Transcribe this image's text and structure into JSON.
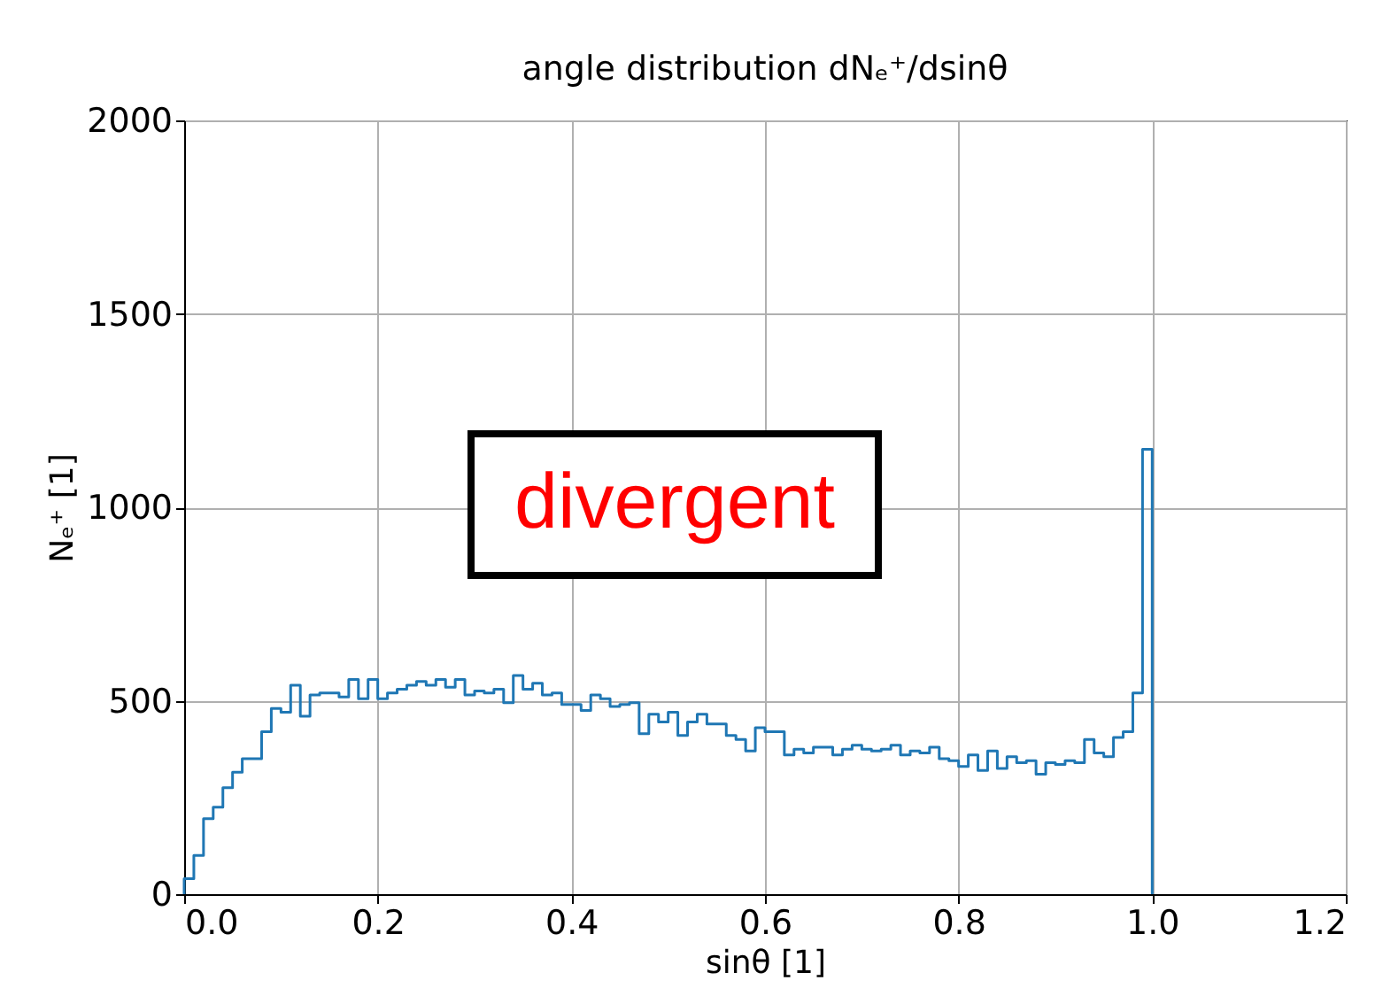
{
  "chart_data": {
    "type": "histogram",
    "title": "angle distribution dNₑ⁺/dsinθ",
    "xlabel": "sinθ [1]",
    "ylabel": "Nₑ⁺ [1]",
    "bins": [
      0.0,
      0.01,
      0.02,
      0.03,
      0.04,
      0.05,
      0.06,
      0.07,
      0.08,
      0.09,
      0.1,
      0.11,
      0.12,
      0.13,
      0.14,
      0.15,
      0.16,
      0.17,
      0.18,
      0.19,
      0.2,
      0.21,
      0.22,
      0.23,
      0.24,
      0.25,
      0.26,
      0.27,
      0.28,
      0.29,
      0.3,
      0.31,
      0.32,
      0.33,
      0.34,
      0.35,
      0.36,
      0.37,
      0.38,
      0.39,
      0.4,
      0.41,
      0.42,
      0.43,
      0.44,
      0.45,
      0.46,
      0.47,
      0.48,
      0.49,
      0.5,
      0.51,
      0.52,
      0.53,
      0.54,
      0.55,
      0.56,
      0.57,
      0.58,
      0.59,
      0.6,
      0.61,
      0.62,
      0.63,
      0.64,
      0.65,
      0.66,
      0.67,
      0.68,
      0.69,
      0.7,
      0.71,
      0.72,
      0.73,
      0.74,
      0.75,
      0.76,
      0.77,
      0.78,
      0.79,
      0.8,
      0.81,
      0.82,
      0.83,
      0.84,
      0.85,
      0.86,
      0.87,
      0.88,
      0.89,
      0.9,
      0.91,
      0.92,
      0.93,
      0.94,
      0.95,
      0.96,
      0.97,
      0.98,
      0.99,
      1.0
    ],
    "values": [
      40,
      100,
      195,
      225,
      275,
      315,
      350,
      350,
      420,
      480,
      470,
      540,
      460,
      515,
      520,
      520,
      510,
      555,
      505,
      555,
      505,
      520,
      530,
      540,
      550,
      540,
      555,
      535,
      555,
      515,
      525,
      520,
      530,
      495,
      565,
      530,
      545,
      515,
      520,
      490,
      490,
      475,
      515,
      505,
      485,
      490,
      495,
      415,
      465,
      445,
      470,
      410,
      445,
      465,
      440,
      440,
      410,
      400,
      370,
      430,
      420,
      420,
      360,
      375,
      365,
      380,
      380,
      360,
      375,
      385,
      375,
      370,
      375,
      385,
      360,
      370,
      365,
      380,
      350,
      345,
      330,
      360,
      320,
      370,
      325,
      355,
      340,
      345,
      310,
      340,
      335,
      345,
      340,
      400,
      365,
      355,
      405,
      420,
      520,
      1150
    ],
    "color": "#1f77b4",
    "xlim": [
      0,
      1.2
    ],
    "xticks": [
      {
        "value": 0,
        "label": "0.0"
      },
      0.2,
      0.4,
      0.6,
      0.8,
      {
        "value": 1,
        "label": "1.0"
      },
      1.2
    ],
    "ylim": [
      0,
      2000
    ],
    "yticks": [
      0,
      500,
      1000,
      1500,
      2000
    ],
    "grid": true,
    "annotations": [
      "divergent"
    ]
  }
}
